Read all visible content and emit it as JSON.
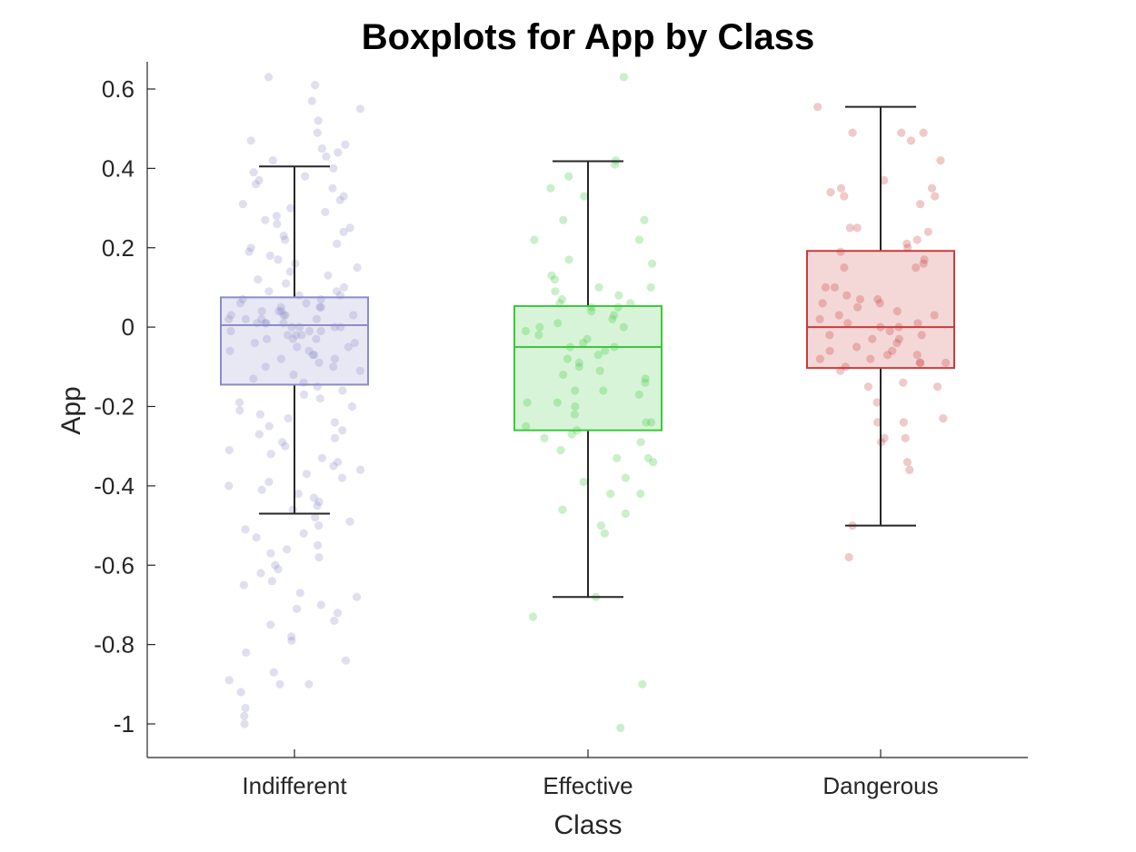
{
  "chart_data": {
    "type": "box",
    "title": "Boxplots for App by Class",
    "xlabel": "Class",
    "ylabel": "App",
    "ylim": [
      -1.08,
      0.67
    ],
    "yticks": [
      0.6,
      0.4,
      0.2,
      0,
      -0.2,
      -0.4,
      -0.6,
      -0.8,
      -1
    ],
    "ytick_labels": [
      "0.6",
      "0.4",
      "0.2",
      "0",
      "-0.2",
      "-0.4",
      "-0.6",
      "-0.8",
      "-1"
    ],
    "categories": [
      "Indifferent",
      "Effective",
      "Dangerous"
    ],
    "grid": false,
    "boxes": [
      {
        "category": "Indifferent",
        "color": "#8c8cc8",
        "q1": -0.145,
        "median": 0.005,
        "q3": 0.075,
        "whisker_low": -0.47,
        "whisker_high": 0.405,
        "points": [
          0.61,
          0.63,
          0.57,
          0.55,
          0.52,
          0.49,
          0.47,
          0.46,
          0.45,
          0.44,
          0.43,
          0.42,
          0.4,
          0.39,
          0.38,
          0.37,
          0.36,
          0.35,
          0.33,
          0.32,
          0.31,
          0.3,
          0.29,
          0.28,
          0.27,
          0.26,
          0.25,
          0.24,
          0.23,
          0.22,
          0.21,
          0.2,
          0.19,
          0.18,
          0.17,
          0.16,
          0.15,
          0.14,
          0.13,
          0.12,
          0.11,
          0.1,
          0.09,
          0.09,
          0.08,
          0.08,
          0.07,
          0.07,
          0.06,
          0.06,
          0.05,
          0.05,
          0.05,
          0.04,
          0.04,
          0.04,
          0.03,
          0.03,
          0.03,
          0.03,
          0.02,
          0.02,
          0.02,
          0.02,
          0.01,
          0.01,
          0.01,
          0.01,
          0.0,
          0.0,
          0.0,
          0.0,
          -0.01,
          -0.01,
          -0.01,
          -0.02,
          -0.02,
          -0.02,
          -0.03,
          -0.03,
          -0.03,
          -0.04,
          -0.04,
          -0.05,
          -0.05,
          -0.06,
          -0.06,
          -0.07,
          -0.07,
          -0.08,
          -0.08,
          -0.09,
          -0.1,
          -0.1,
          -0.11,
          -0.12,
          -0.13,
          -0.14,
          -0.15,
          -0.16,
          -0.17,
          -0.18,
          -0.19,
          -0.2,
          -0.21,
          -0.22,
          -0.23,
          -0.24,
          -0.25,
          -0.26,
          -0.27,
          -0.28,
          -0.29,
          -0.3,
          -0.31,
          -0.32,
          -0.33,
          -0.34,
          -0.35,
          -0.36,
          -0.37,
          -0.38,
          -0.39,
          -0.4,
          -0.41,
          -0.42,
          -0.43,
          -0.44,
          -0.45,
          -0.46,
          -0.48,
          -0.49,
          -0.5,
          -0.51,
          -0.52,
          -0.53,
          -0.55,
          -0.56,
          -0.57,
          -0.58,
          -0.6,
          -0.61,
          -0.62,
          -0.64,
          -0.65,
          -0.67,
          -0.68,
          -0.7,
          -0.71,
          -0.72,
          -0.74,
          -0.75,
          -0.78,
          -0.79,
          -0.82,
          -0.84,
          -0.87,
          -0.89,
          -0.9,
          -0.9,
          -0.92,
          -0.96,
          -0.98,
          -1.0
        ]
      },
      {
        "category": "Effective",
        "color": "#3cc83c",
        "q1": -0.26,
        "median": -0.05,
        "q3": 0.053,
        "whisker_low": -0.68,
        "whisker_high": 0.418,
        "points": [
          0.63,
          0.42,
          0.41,
          0.38,
          0.35,
          0.33,
          0.27,
          0.27,
          0.22,
          0.22,
          0.17,
          0.16,
          0.13,
          0.12,
          0.1,
          0.1,
          0.09,
          0.08,
          0.07,
          0.06,
          0.06,
          0.05,
          0.05,
          0.04,
          0.03,
          0.02,
          0.01,
          0.0,
          0.0,
          -0.01,
          -0.02,
          -0.03,
          -0.04,
          -0.05,
          -0.05,
          -0.06,
          -0.07,
          -0.08,
          -0.09,
          -0.1,
          -0.11,
          -0.12,
          -0.13,
          -0.14,
          -0.16,
          -0.16,
          -0.17,
          -0.19,
          -0.19,
          -0.2,
          -0.22,
          -0.24,
          -0.24,
          -0.25,
          -0.26,
          -0.27,
          -0.28,
          -0.29,
          -0.31,
          -0.33,
          -0.33,
          -0.34,
          -0.38,
          -0.39,
          -0.42,
          -0.42,
          -0.46,
          -0.47,
          -0.5,
          -0.52,
          -0.68,
          -0.73,
          -0.9,
          -1.01
        ]
      },
      {
        "category": "Dangerous",
        "color": "#c83c3c",
        "q1": -0.103,
        "median": 0.0,
        "q3": 0.192,
        "whisker_low": -0.5,
        "whisker_high": 0.555,
        "points": [
          0.555,
          0.49,
          0.49,
          0.49,
          0.47,
          0.42,
          0.37,
          0.35,
          0.35,
          0.34,
          0.33,
          0.33,
          0.31,
          0.25,
          0.25,
          0.24,
          0.22,
          0.21,
          0.2,
          0.19,
          0.17,
          0.16,
          0.15,
          0.15,
          0.1,
          0.1,
          0.08,
          0.07,
          0.07,
          0.06,
          0.06,
          0.05,
          0.04,
          0.03,
          0.03,
          0.02,
          0.01,
          0.01,
          0.0,
          0.0,
          -0.01,
          -0.02,
          -0.02,
          -0.03,
          -0.03,
          -0.04,
          -0.05,
          -0.06,
          -0.06,
          -0.07,
          -0.07,
          -0.08,
          -0.08,
          -0.09,
          -0.09,
          -0.09,
          -0.1,
          -0.11,
          -0.14,
          -0.15,
          -0.15,
          -0.19,
          -0.23,
          -0.24,
          -0.24,
          -0.28,
          -0.28,
          -0.29,
          -0.34,
          -0.36,
          -0.5,
          -0.58
        ]
      }
    ]
  }
}
